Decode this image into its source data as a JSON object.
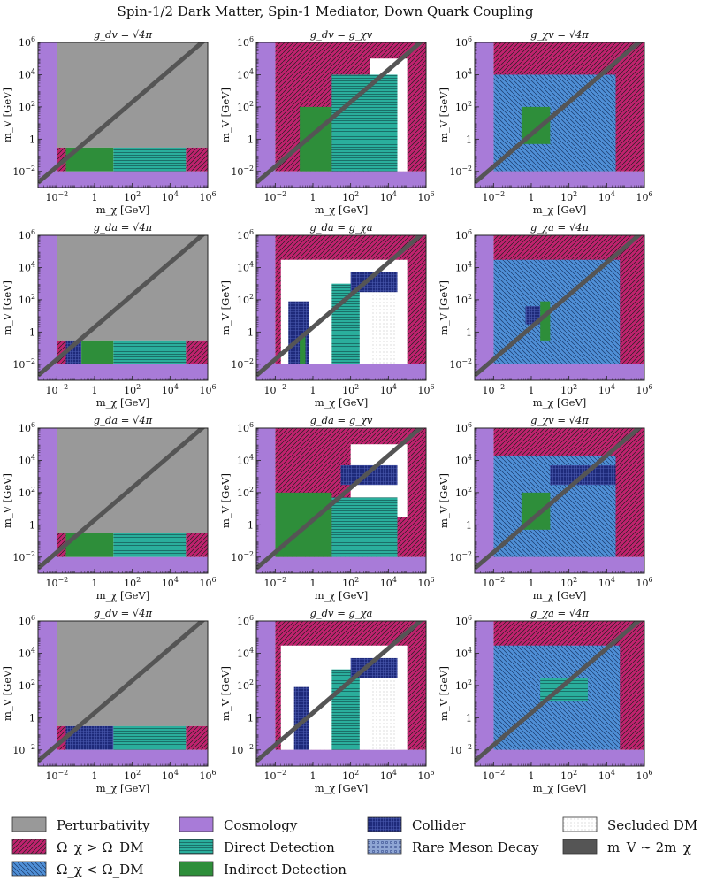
{
  "figure": {
    "title": "Spin-1/2 Dark Matter, Spin-1 Mediator, Down Quark Coupling",
    "xlabel": "m_χ [GeV]",
    "ylabel": "m_V [GeV]"
  },
  "colors": {
    "perturbativity": "#999999",
    "overabundant": "#c0226e",
    "underabundant": "#4f8fd6",
    "cosmology": "#a87bd8",
    "direct_detection": "#2aae9c",
    "indirect_detection": "#2e8e3a",
    "collider": "#1e2a7a",
    "rare_meson": "#8fa6d4",
    "secluded": "#eeeeee",
    "resonance": "#555555"
  },
  "legend": [
    {
      "key": "perturbativity",
      "label": "Perturbativity"
    },
    {
      "key": "overabundant",
      "label": "Ω_χ > Ω_DM"
    },
    {
      "key": "underabundant",
      "label": "Ω_χ < Ω_DM"
    },
    {
      "key": "cosmology",
      "label": "Cosmology"
    },
    {
      "key": "direct_detection",
      "label": "Direct Detection"
    },
    {
      "key": "indirect_detection",
      "label": "Indirect Detection"
    },
    {
      "key": "collider",
      "label": "Collider"
    },
    {
      "key": "rare_meson",
      "label": "Rare Meson Decay"
    },
    {
      "key": "secluded",
      "label": "Secluded DM"
    },
    {
      "key": "resonance",
      "label": "m_V ∼ 2m_χ"
    }
  ],
  "chart_data": {
    "type": "region-grid",
    "axis": {
      "scale": "log",
      "xlim": [
        0.001,
        1000000
      ],
      "ylim": [
        0.001,
        1000000
      ],
      "xticks": [
        "10^-2",
        "1",
        "10^2",
        "10^4",
        "10^6"
      ],
      "yticks": [
        "10^-2",
        "1",
        "10^2",
        "10^4",
        "10^6"
      ]
    },
    "panels": [
      {
        "row": 0,
        "col": 0,
        "title": "g_dv = √4π",
        "regions": [
          {
            "type": "perturbativity",
            "x": [
              0.01,
              1000000
            ],
            "y": [
              0.3,
              1000000
            ]
          },
          {
            "type": "overabundant",
            "x": [
              0.01,
              0.03
            ],
            "y": [
              0.01,
              0.3
            ]
          },
          {
            "type": "indirect_detection",
            "x": [
              0.03,
              10
            ],
            "y": [
              0.01,
              0.3
            ]
          },
          {
            "type": "direct_detection",
            "x": [
              10,
              70000
            ],
            "y": [
              0.01,
              0.3
            ]
          },
          {
            "type": "overabundant",
            "x": [
              70000,
              1000000
            ],
            "y": [
              0.01,
              0.3
            ]
          }
        ]
      },
      {
        "row": 0,
        "col": 1,
        "title": "g_dv = g_χv",
        "regions": [
          {
            "type": "overabundant",
            "x": [
              0.01,
              1000000
            ],
            "y": [
              0.01,
              1000000
            ]
          },
          {
            "type": "white",
            "x": [
              1000,
              100000
            ],
            "y": [
              0.01,
              100000
            ]
          },
          {
            "type": "indirect_detection",
            "x": [
              0.2,
              10
            ],
            "y": [
              0.01,
              100
            ]
          },
          {
            "type": "direct_detection",
            "x": [
              10,
              30000
            ],
            "y": [
              0.01,
              10000
            ]
          }
        ]
      },
      {
        "row": 0,
        "col": 2,
        "title": "g_χv = √4π",
        "regions": [
          {
            "type": "overabundant",
            "x": [
              0.01,
              1000000
            ],
            "y": [
              0.01,
              1000000
            ]
          },
          {
            "type": "underabundant",
            "x": [
              0.01,
              30000
            ],
            "y": [
              0.01,
              10000
            ]
          },
          {
            "type": "indirect_detection",
            "x": [
              0.3,
              10
            ],
            "y": [
              0.5,
              100
            ]
          }
        ]
      },
      {
        "row": 1,
        "col": 0,
        "title": "g_da = √4π",
        "regions": [
          {
            "type": "perturbativity",
            "x": [
              0.01,
              1000000
            ],
            "y": [
              0.3,
              1000000
            ]
          },
          {
            "type": "overabundant",
            "x": [
              0.01,
              0.03
            ],
            "y": [
              0.01,
              0.3
            ]
          },
          {
            "type": "collider",
            "x": [
              0.03,
              0.2
            ],
            "y": [
              0.01,
              0.3
            ]
          },
          {
            "type": "indirect_detection",
            "x": [
              0.2,
              10
            ],
            "y": [
              0.01,
              0.3
            ]
          },
          {
            "type": "direct_detection",
            "x": [
              10,
              70000
            ],
            "y": [
              0.01,
              0.3
            ]
          },
          {
            "type": "overabundant",
            "x": [
              70000,
              1000000
            ],
            "y": [
              0.01,
              0.3
            ]
          }
        ]
      },
      {
        "row": 1,
        "col": 1,
        "title": "g_da = g_χa",
        "regions": [
          {
            "type": "overabundant",
            "x": [
              0.01,
              1000000
            ],
            "y": [
              0.01,
              1000000
            ]
          },
          {
            "type": "white",
            "x": [
              0.02,
              100000
            ],
            "y": [
              0.01,
              30000
            ]
          },
          {
            "type": "collider",
            "x": [
              0.05,
              0.6
            ],
            "y": [
              0.01,
              80
            ]
          },
          {
            "type": "indirect_detection",
            "x": [
              0.2,
              0.4
            ],
            "y": [
              0.01,
              0.5
            ]
          },
          {
            "type": "direct_detection",
            "x": [
              10,
              300
            ],
            "y": [
              0.01,
              1000
            ]
          },
          {
            "type": "secluded",
            "x": [
              1000,
              30000
            ],
            "y": [
              0.01,
              500
            ]
          },
          {
            "type": "collider",
            "x": [
              100,
              30000
            ],
            "y": [
              300,
              5000
            ]
          }
        ]
      },
      {
        "row": 1,
        "col": 2,
        "title": "g_χa = √4π",
        "regions": [
          {
            "type": "overabundant",
            "x": [
              0.01,
              1000000
            ],
            "y": [
              0.01,
              1000000
            ]
          },
          {
            "type": "underabundant",
            "x": [
              0.01,
              50000
            ],
            "y": [
              0.01,
              30000
            ]
          },
          {
            "type": "collider",
            "x": [
              0.5,
              3
            ],
            "y": [
              3,
              40
            ]
          },
          {
            "type": "indirect_detection",
            "x": [
              3,
              10
            ],
            "y": [
              0.3,
              80
            ]
          }
        ]
      },
      {
        "row": 2,
        "col": 0,
        "title": "g_da = √4π",
        "regions": [
          {
            "type": "perturbativity",
            "x": [
              0.01,
              1000000
            ],
            "y": [
              0.3,
              1000000
            ]
          },
          {
            "type": "overabundant",
            "x": [
              0.01,
              0.03
            ],
            "y": [
              0.01,
              0.3
            ]
          },
          {
            "type": "indirect_detection",
            "x": [
              0.03,
              10
            ],
            "y": [
              0.01,
              0.3
            ]
          },
          {
            "type": "direct_detection",
            "x": [
              10,
              70000
            ],
            "y": [
              0.01,
              0.3
            ]
          },
          {
            "type": "overabundant",
            "x": [
              70000,
              1000000
            ],
            "y": [
              0.01,
              0.3
            ]
          }
        ]
      },
      {
        "row": 2,
        "col": 1,
        "title": "g_da = g_χv",
        "regions": [
          {
            "type": "overabundant",
            "x": [
              0.01,
              1000000
            ],
            "y": [
              0.01,
              1000000
            ]
          },
          {
            "type": "white",
            "x": [
              100,
              100000
            ],
            "y": [
              3,
              100000
            ]
          },
          {
            "type": "indirect_detection",
            "x": [
              0.01,
              10
            ],
            "y": [
              0.01,
              100
            ]
          },
          {
            "type": "direct_detection",
            "x": [
              10,
              30000
            ],
            "y": [
              0.01,
              50
            ]
          },
          {
            "type": "collider",
            "x": [
              30,
              30000
            ],
            "y": [
              300,
              5000
            ]
          }
        ]
      },
      {
        "row": 2,
        "col": 2,
        "title": "g_χv = √4π",
        "regions": [
          {
            "type": "overabundant",
            "x": [
              0.01,
              1000000
            ],
            "y": [
              0.01,
              1000000
            ]
          },
          {
            "type": "underabundant",
            "x": [
              0.01,
              30000
            ],
            "y": [
              0.01,
              20000
            ]
          },
          {
            "type": "indirect_detection",
            "x": [
              0.3,
              10
            ],
            "y": [
              0.5,
              100
            ]
          },
          {
            "type": "collider",
            "x": [
              10,
              30000
            ],
            "y": [
              300,
              5000
            ]
          }
        ]
      },
      {
        "row": 3,
        "col": 0,
        "title": "g_dv = √4π",
        "regions": [
          {
            "type": "perturbativity",
            "x": [
              0.01,
              1000000
            ],
            "y": [
              0.3,
              1000000
            ]
          },
          {
            "type": "overabundant",
            "x": [
              0.01,
              0.03
            ],
            "y": [
              0.01,
              0.3
            ]
          },
          {
            "type": "collider",
            "x": [
              0.03,
              10
            ],
            "y": [
              0.01,
              0.3
            ]
          },
          {
            "type": "direct_detection",
            "x": [
              10,
              70000
            ],
            "y": [
              0.01,
              0.3
            ]
          },
          {
            "type": "overabundant",
            "x": [
              70000,
              1000000
            ],
            "y": [
              0.01,
              0.3
            ]
          }
        ]
      },
      {
        "row": 3,
        "col": 1,
        "title": "g_dv = g_χa",
        "regions": [
          {
            "type": "overabundant",
            "x": [
              0.01,
              1000000
            ],
            "y": [
              0.01,
              1000000
            ]
          },
          {
            "type": "white",
            "x": [
              0.02,
              100000
            ],
            "y": [
              0.01,
              30000
            ]
          },
          {
            "type": "collider",
            "x": [
              0.1,
              0.6
            ],
            "y": [
              0.01,
              80
            ]
          },
          {
            "type": "direct_detection",
            "x": [
              10,
              300
            ],
            "y": [
              0.01,
              1000
            ]
          },
          {
            "type": "secluded",
            "x": [
              1000,
              30000
            ],
            "y": [
              0.01,
              500
            ]
          },
          {
            "type": "collider",
            "x": [
              100,
              30000
            ],
            "y": [
              300,
              5000
            ]
          }
        ]
      },
      {
        "row": 3,
        "col": 2,
        "title": "g_χa = √4π",
        "regions": [
          {
            "type": "overabundant",
            "x": [
              0.01,
              1000000
            ],
            "y": [
              0.01,
              1000000
            ]
          },
          {
            "type": "underabundant",
            "x": [
              0.01,
              50000
            ],
            "y": [
              0.01,
              30000
            ]
          },
          {
            "type": "direct_detection",
            "x": [
              3,
              1000
            ],
            "y": [
              10,
              300
            ]
          }
        ]
      }
    ]
  }
}
